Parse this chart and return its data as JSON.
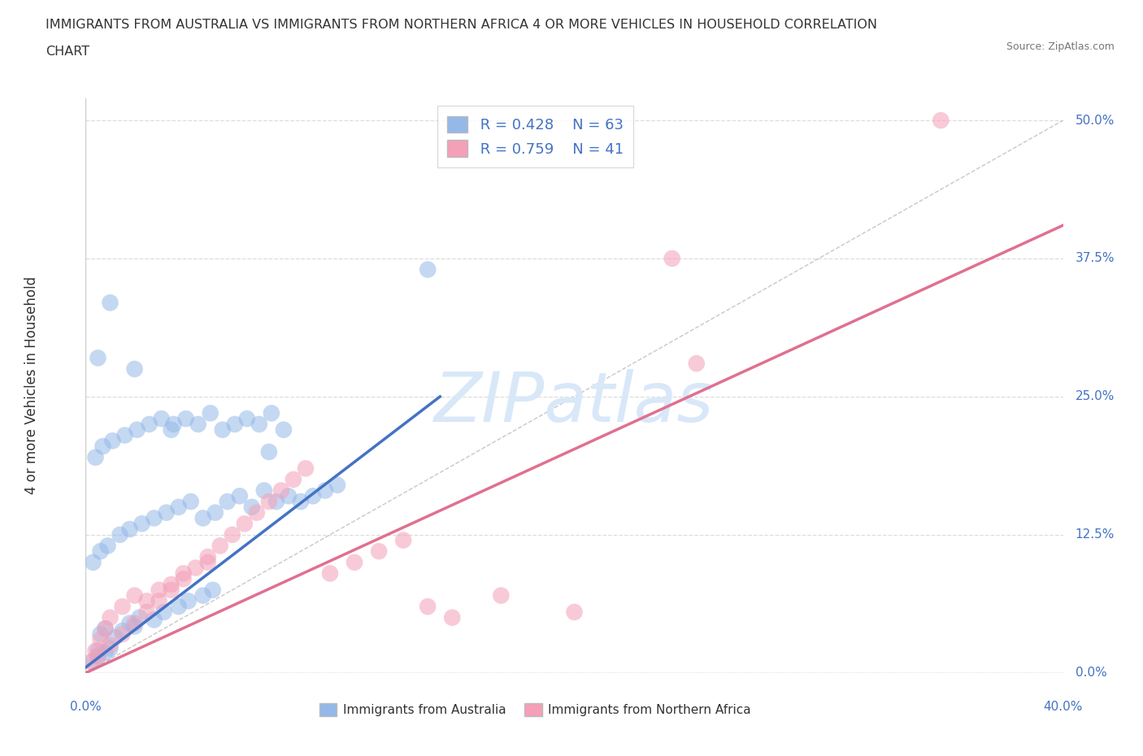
{
  "title_line1": "IMMIGRANTS FROM AUSTRALIA VS IMMIGRANTS FROM NORTHERN AFRICA 4 OR MORE VEHICLES IN HOUSEHOLD CORRELATION",
  "title_line2": "CHART",
  "source": "Source: ZipAtlas.com",
  "ylabel": "4 or more Vehicles in Household",
  "ytick_pcts": [
    "0.0%",
    "12.5%",
    "25.0%",
    "37.5%",
    "50.0%"
  ],
  "ytick_vals": [
    0.0,
    12.5,
    25.0,
    37.5,
    50.0
  ],
  "xlim": [
    0.0,
    40.0
  ],
  "ylim": [
    0.0,
    52.0
  ],
  "australia_R": 0.428,
  "australia_N": 63,
  "northern_africa_R": 0.759,
  "northern_africa_N": 41,
  "australia_dot_color": "#94b8e8",
  "na_dot_color": "#f4a0b8",
  "australia_line_color": "#4472c4",
  "na_line_color": "#e07090",
  "diagonal_color": "#c8c8c8",
  "grid_color": "#dddddd",
  "axis_color": "#cccccc",
  "label_blue_color": "#4472c4",
  "text_dark": "#333333",
  "watermark_color": "#d8e8f8",
  "background": "#ffffff",
  "aus_line_x1": 0.0,
  "aus_line_x2": 14.5,
  "aus_line_y1": 0.5,
  "aus_line_y2": 25.0,
  "na_line_x1": 0.0,
  "na_line_x2": 40.0,
  "na_line_y1": 0.0,
  "na_line_y2": 40.5,
  "diag_x1": 0.0,
  "diag_x2": 40.0,
  "diag_y1": 0.0,
  "diag_y2": 50.0,
  "scatter_aus_x": [
    0.3,
    0.5,
    0.5,
    0.8,
    1.0,
    0.6,
    0.8,
    1.2,
    1.5,
    1.8,
    2.0,
    2.2,
    2.8,
    3.2,
    3.8,
    4.2,
    4.8,
    5.2,
    0.3,
    0.6,
    0.9,
    1.4,
    1.8,
    2.3,
    2.8,
    3.3,
    3.8,
    4.3,
    4.8,
    5.3,
    5.8,
    6.3,
    6.8,
    7.3,
    7.8,
    8.3,
    8.8,
    9.3,
    9.8,
    10.3,
    0.4,
    0.7,
    1.1,
    1.6,
    2.1,
    2.6,
    3.1,
    3.6,
    4.1,
    4.6,
    5.1,
    5.6,
    6.1,
    6.6,
    7.1,
    7.6,
    8.1,
    0.5,
    1.0,
    2.0,
    3.5,
    7.5,
    14.0
  ],
  "scatter_aus_y": [
    1.0,
    1.5,
    2.0,
    1.8,
    2.2,
    3.5,
    4.0,
    3.2,
    3.8,
    4.5,
    4.2,
    5.0,
    4.8,
    5.5,
    6.0,
    6.5,
    7.0,
    7.5,
    10.0,
    11.0,
    11.5,
    12.5,
    13.0,
    13.5,
    14.0,
    14.5,
    15.0,
    15.5,
    14.0,
    14.5,
    15.5,
    16.0,
    15.0,
    16.5,
    15.5,
    16.0,
    15.5,
    16.0,
    16.5,
    17.0,
    19.5,
    20.5,
    21.0,
    21.5,
    22.0,
    22.5,
    23.0,
    22.5,
    23.0,
    22.5,
    23.5,
    22.0,
    22.5,
    23.0,
    22.5,
    23.5,
    22.0,
    28.5,
    33.5,
    27.5,
    22.0,
    20.0,
    36.5
  ],
  "scatter_na_x": [
    0.2,
    0.4,
    0.6,
    0.8,
    1.0,
    1.5,
    2.0,
    2.5,
    3.0,
    3.5,
    4.0,
    5.0,
    0.5,
    1.0,
    1.5,
    2.0,
    2.5,
    3.0,
    3.5,
    4.0,
    4.5,
    5.0,
    5.5,
    6.0,
    6.5,
    7.0,
    7.5,
    8.0,
    8.5,
    9.0,
    10.0,
    11.0,
    12.0,
    13.0,
    14.0,
    15.0,
    17.0,
    20.0,
    24.0,
    35.0,
    25.0
  ],
  "scatter_na_y": [
    1.0,
    2.0,
    3.0,
    4.0,
    5.0,
    6.0,
    7.0,
    6.5,
    7.5,
    8.0,
    9.0,
    10.0,
    1.5,
    2.5,
    3.5,
    4.5,
    5.5,
    6.5,
    7.5,
    8.5,
    9.5,
    10.5,
    11.5,
    12.5,
    13.5,
    14.5,
    15.5,
    16.5,
    17.5,
    18.5,
    9.0,
    10.0,
    11.0,
    12.0,
    6.0,
    5.0,
    7.0,
    5.5,
    37.5,
    50.0,
    28.0
  ]
}
